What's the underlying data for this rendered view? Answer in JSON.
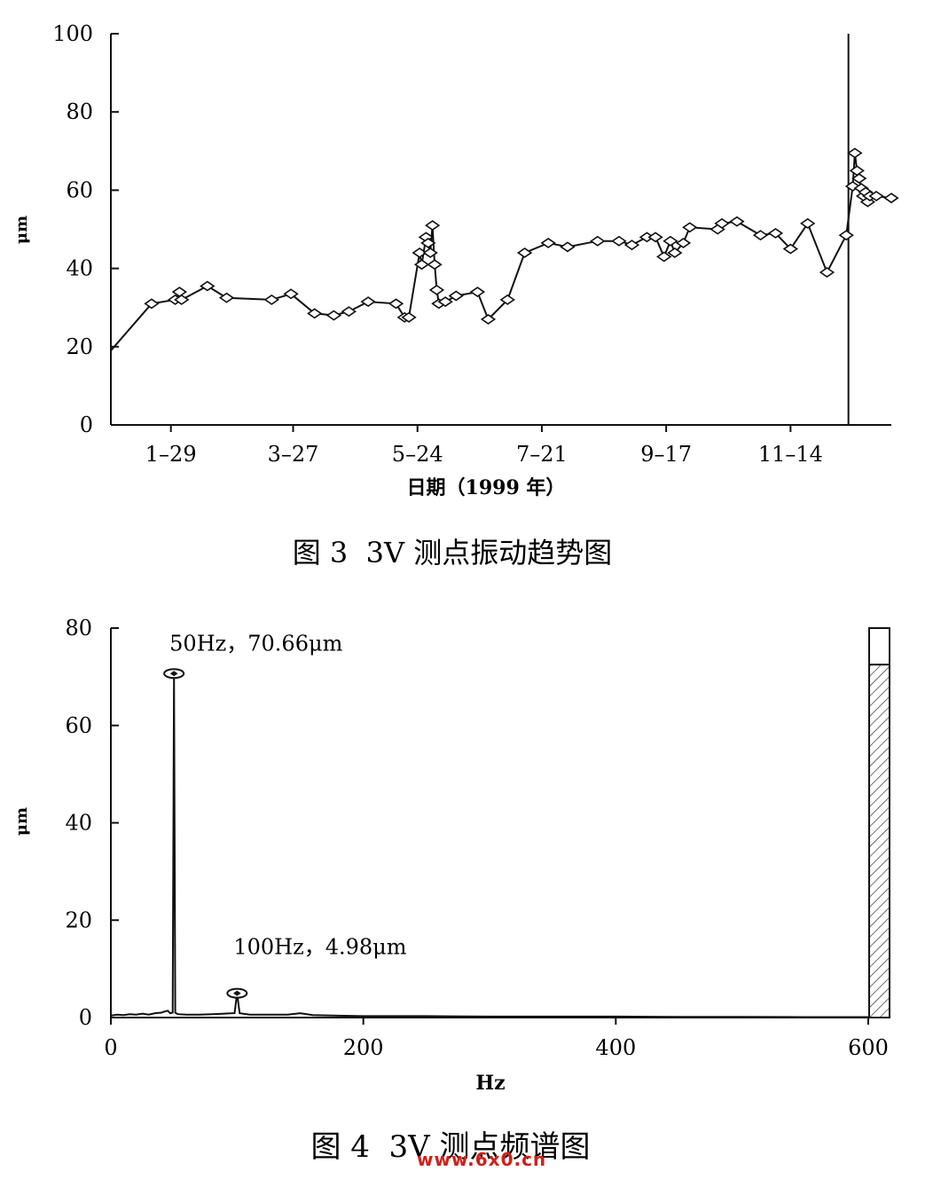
{
  "watermark": "www.6x0.cn",
  "chart_data": [
    {
      "type": "line",
      "caption": "图 3  3V 测点振动趋势图",
      "xlabel": "日期（1999 年）",
      "ylabel": "μm",
      "ylim": [
        0,
        100
      ],
      "yticks": [
        0,
        20,
        40,
        60,
        80,
        100
      ],
      "xlim": [
        "1999-01-01",
        "1999-12-31"
      ],
      "xtick_labels": [
        {
          "date": "1999-01-29",
          "label": "1–29"
        },
        {
          "date": "1999-03-27",
          "label": "3–27"
        },
        {
          "date": "1999-05-24",
          "label": "5–24"
        },
        {
          "date": "1999-07-21",
          "label": "7–21"
        },
        {
          "date": "1999-09-17",
          "label": "9–17"
        },
        {
          "date": "1999-11-14",
          "label": "11–14"
        }
      ],
      "grid": false,
      "series": [
        {
          "marker": "diamond",
          "points": [
            [
              "1999-01-01",
              19
            ],
            [
              "1999-01-20",
              31
            ],
            [
              "1999-01-31",
              32
            ],
            [
              "1999-02-02",
              34
            ],
            [
              "1999-02-03",
              32
            ],
            [
              "1999-02-15",
              35.5
            ],
            [
              "1999-02-24",
              32.5
            ],
            [
              "1999-03-17",
              32
            ],
            [
              "1999-03-26",
              33.5
            ],
            [
              "1999-04-06",
              28.5
            ],
            [
              "1999-04-15",
              28
            ],
            [
              "1999-04-22",
              29
            ],
            [
              "1999-05-01",
              31.5
            ],
            [
              "1999-05-14",
              31
            ],
            [
              "1999-05-18",
              27.5
            ],
            [
              "1999-05-20",
              27.5
            ],
            [
              "1999-05-25",
              44
            ],
            [
              "1999-05-26",
              41
            ],
            [
              "1999-05-28",
              48
            ],
            [
              "1999-05-29",
              46.5
            ],
            [
              "1999-05-30",
              44
            ],
            [
              "1999-05-31",
              51
            ],
            [
              "1999-06-01",
              41
            ],
            [
              "1999-06-02",
              34.5
            ],
            [
              "1999-06-03",
              31
            ],
            [
              "1999-06-06",
              31.5
            ],
            [
              "1999-06-11",
              33
            ],
            [
              "1999-06-21",
              34
            ],
            [
              "1999-06-26",
              27
            ],
            [
              "1999-07-05",
              32
            ],
            [
              "1999-07-13",
              44
            ],
            [
              "1999-07-24",
              46.5
            ],
            [
              "1999-08-02",
              45.5
            ],
            [
              "1999-08-16",
              47
            ],
            [
              "1999-08-26",
              47
            ],
            [
              "1999-09-01",
              46
            ],
            [
              "1999-09-08",
              48
            ],
            [
              "1999-09-12",
              48
            ],
            [
              "1999-09-16",
              43
            ],
            [
              "1999-09-19",
              47
            ],
            [
              "1999-09-21",
              44
            ],
            [
              "1999-09-25",
              46.5
            ],
            [
              "1999-09-28",
              50.5
            ],
            [
              "1999-10-11",
              50
            ],
            [
              "1999-10-13",
              51.5
            ],
            [
              "1999-10-20",
              52
            ],
            [
              "1999-10-31",
              48.5
            ],
            [
              "1999-11-07",
              49
            ],
            [
              "1999-11-14",
              45
            ],
            [
              "1999-11-22",
              51.5
            ],
            [
              "1999-12-01",
              39
            ],
            [
              "1999-12-10",
              48.5
            ],
            [
              "1999-12-13",
              61
            ],
            [
              "1999-12-14",
              69.5
            ],
            [
              "1999-12-15",
              65
            ],
            [
              "1999-12-16",
              63
            ],
            [
              "1999-12-17",
              60.5
            ],
            [
              "1999-12-18",
              58.5
            ],
            [
              "1999-12-19",
              59.5
            ],
            [
              "1999-12-20",
              57
            ],
            [
              "1999-12-21",
              58.5
            ],
            [
              "1999-12-24",
              58.5
            ],
            [
              "1999-12-31",
              58
            ]
          ]
        }
      ]
    },
    {
      "type": "line",
      "subtype": "spectrum",
      "caption": "图 4  3V 测点频谱图",
      "xlabel": "Hz",
      "ylabel": "μm",
      "xlim": [
        0,
        600
      ],
      "ylim": [
        0,
        80
      ],
      "xticks": [
        0,
        200,
        400,
        600
      ],
      "yticks": [
        0,
        20,
        40,
        60,
        80
      ],
      "grid": false,
      "series": [
        {
          "points": [
            [
              0,
              0.4
            ],
            [
              5,
              0.6
            ],
            [
              10,
              0.5
            ],
            [
              15,
              0.7
            ],
            [
              20,
              0.6
            ],
            [
              25,
              0.8
            ],
            [
              30,
              0.6
            ],
            [
              35,
              0.9
            ],
            [
              40,
              1.0
            ],
            [
              42,
              1.2
            ],
            [
              45,
              1.4
            ],
            [
              47,
              0.9
            ],
            [
              49,
              1.0
            ],
            [
              50,
              70.66
            ],
            [
              51,
              1.0
            ],
            [
              53,
              0.7
            ],
            [
              60,
              0.6
            ],
            [
              70,
              0.6
            ],
            [
              80,
              0.7
            ],
            [
              90,
              0.8
            ],
            [
              98,
              0.9
            ],
            [
              100,
              4.98
            ],
            [
              102,
              0.9
            ],
            [
              110,
              0.6
            ],
            [
              125,
              0.6
            ],
            [
              140,
              0.6
            ],
            [
              150,
              0.9
            ],
            [
              160,
              0.5
            ],
            [
              200,
              0.3
            ],
            [
              250,
              0.3
            ],
            [
              300,
              0.2
            ],
            [
              350,
              0.2
            ],
            [
              400,
              0.2
            ],
            [
              450,
              0.15
            ],
            [
              500,
              0.15
            ],
            [
              550,
              0.1
            ],
            [
              600,
              0.1
            ]
          ]
        }
      ],
      "annotations": [
        {
          "text": "50Hz，70.66μm",
          "x": 50,
          "y": 70.66
        },
        {
          "text": "100Hz，4.98μm",
          "x": 100,
          "y": 4.98
        }
      ],
      "level_bar": {
        "max": 80,
        "value": 72.5,
        "fill": "hatched"
      }
    }
  ]
}
